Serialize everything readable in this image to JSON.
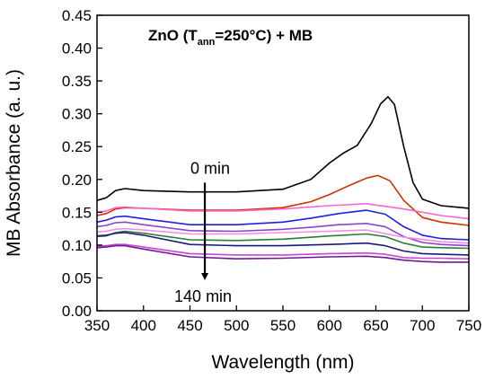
{
  "chart_data": {
    "type": "line",
    "title": {
      "prefix": "ZnO (T",
      "sub": "ann",
      "suffix": "=250°C) + MB"
    },
    "xlabel": "Wavelength (nm)",
    "ylabel": "MB Absorbance (a. u.)",
    "xlim": [
      350,
      750
    ],
    "ylim": [
      0,
      0.45
    ],
    "xticks": [
      "350",
      "400",
      "450",
      "500",
      "550",
      "600",
      "650",
      "700",
      "750"
    ],
    "yticks": [
      "0.00",
      "0.05",
      "0.10",
      "0.15",
      "0.20",
      "0.25",
      "0.30",
      "0.35",
      "0.40",
      "0.45"
    ],
    "grid": false,
    "annotations": {
      "start": "0 min",
      "end": "140 min",
      "arrow_wavelength": 466,
      "arrow_from": 0.195,
      "arrow_to": 0.052
    },
    "series": [
      {
        "color": "#000000",
        "points": [
          [
            350,
            0.168
          ],
          [
            360,
            0.172
          ],
          [
            370,
            0.183
          ],
          [
            380,
            0.186
          ],
          [
            400,
            0.183
          ],
          [
            450,
            0.181
          ],
          [
            500,
            0.181
          ],
          [
            550,
            0.185
          ],
          [
            580,
            0.2
          ],
          [
            600,
            0.225
          ],
          [
            615,
            0.24
          ],
          [
            630,
            0.252
          ],
          [
            645,
            0.285
          ],
          [
            655,
            0.315
          ],
          [
            663,
            0.326
          ],
          [
            670,
            0.314
          ],
          [
            680,
            0.25
          ],
          [
            690,
            0.195
          ],
          [
            700,
            0.17
          ],
          [
            720,
            0.16
          ],
          [
            750,
            0.156
          ]
        ]
      },
      {
        "color": "#cc3300",
        "points": [
          [
            350,
            0.145
          ],
          [
            360,
            0.148
          ],
          [
            370,
            0.155
          ],
          [
            380,
            0.157
          ],
          [
            400,
            0.156
          ],
          [
            450,
            0.153
          ],
          [
            500,
            0.153
          ],
          [
            550,
            0.157
          ],
          [
            580,
            0.166
          ],
          [
            600,
            0.177
          ],
          [
            620,
            0.19
          ],
          [
            640,
            0.202
          ],
          [
            652,
            0.206
          ],
          [
            665,
            0.198
          ],
          [
            680,
            0.168
          ],
          [
            700,
            0.142
          ],
          [
            720,
            0.135
          ],
          [
            750,
            0.13
          ]
        ]
      },
      {
        "color": "#ff66cc",
        "points": [
          [
            350,
            0.15
          ],
          [
            360,
            0.152
          ],
          [
            370,
            0.157
          ],
          [
            380,
            0.158
          ],
          [
            400,
            0.156
          ],
          [
            450,
            0.152
          ],
          [
            500,
            0.152
          ],
          [
            550,
            0.155
          ],
          [
            600,
            0.16
          ],
          [
            640,
            0.163
          ],
          [
            680,
            0.155
          ],
          [
            720,
            0.145
          ],
          [
            750,
            0.14
          ]
        ]
      },
      {
        "color": "#1f1fe0",
        "points": [
          [
            350,
            0.135
          ],
          [
            360,
            0.138
          ],
          [
            370,
            0.143
          ],
          [
            380,
            0.144
          ],
          [
            400,
            0.14
          ],
          [
            450,
            0.131
          ],
          [
            500,
            0.131
          ],
          [
            550,
            0.135
          ],
          [
            580,
            0.141
          ],
          [
            610,
            0.148
          ],
          [
            640,
            0.153
          ],
          [
            660,
            0.147
          ],
          [
            680,
            0.128
          ],
          [
            700,
            0.115
          ],
          [
            720,
            0.11
          ],
          [
            750,
            0.108
          ]
        ]
      },
      {
        "color": "#8e44c8",
        "points": [
          [
            350,
            0.128
          ],
          [
            360,
            0.13
          ],
          [
            370,
            0.134
          ],
          [
            380,
            0.135
          ],
          [
            400,
            0.131
          ],
          [
            450,
            0.122
          ],
          [
            500,
            0.121
          ],
          [
            550,
            0.124
          ],
          [
            580,
            0.127
          ],
          [
            610,
            0.131
          ],
          [
            640,
            0.133
          ],
          [
            660,
            0.128
          ],
          [
            680,
            0.113
          ],
          [
            700,
            0.104
          ],
          [
            720,
            0.101
          ],
          [
            750,
            0.099
          ]
        ]
      },
      {
        "color": "#ff88ee",
        "points": [
          [
            350,
            0.12
          ],
          [
            360,
            0.121
          ],
          [
            370,
            0.124
          ],
          [
            380,
            0.125
          ],
          [
            400,
            0.123
          ],
          [
            450,
            0.117
          ],
          [
            500,
            0.117
          ],
          [
            550,
            0.119
          ],
          [
            600,
            0.121
          ],
          [
            640,
            0.123
          ],
          [
            680,
            0.112
          ],
          [
            720,
            0.105
          ],
          [
            750,
            0.103
          ]
        ]
      },
      {
        "color": "#2e7d32",
        "points": [
          [
            350,
            0.113
          ],
          [
            360,
            0.114
          ],
          [
            370,
            0.119
          ],
          [
            380,
            0.121
          ],
          [
            400,
            0.118
          ],
          [
            450,
            0.108
          ],
          [
            500,
            0.107
          ],
          [
            550,
            0.109
          ],
          [
            600,
            0.114
          ],
          [
            640,
            0.117
          ],
          [
            660,
            0.113
          ],
          [
            680,
            0.103
          ],
          [
            700,
            0.097
          ],
          [
            720,
            0.096
          ],
          [
            750,
            0.095
          ]
        ]
      },
      {
        "color": "#1a1a7a",
        "points": [
          [
            350,
            0.114
          ],
          [
            360,
            0.115
          ],
          [
            370,
            0.118
          ],
          [
            380,
            0.119
          ],
          [
            400,
            0.115
          ],
          [
            450,
            0.101
          ],
          [
            500,
            0.099
          ],
          [
            550,
            0.099
          ],
          [
            600,
            0.101
          ],
          [
            640,
            0.103
          ],
          [
            660,
            0.099
          ],
          [
            680,
            0.091
          ],
          [
            700,
            0.087
          ],
          [
            720,
            0.086
          ],
          [
            750,
            0.085
          ]
        ]
      },
      {
        "color": "#cc44cc",
        "points": [
          [
            350,
            0.098
          ],
          [
            360,
            0.099
          ],
          [
            370,
            0.101
          ],
          [
            380,
            0.101
          ],
          [
            400,
            0.097
          ],
          [
            450,
            0.087
          ],
          [
            500,
            0.085
          ],
          [
            550,
            0.085
          ],
          [
            600,
            0.087
          ],
          [
            640,
            0.088
          ],
          [
            660,
            0.086
          ],
          [
            680,
            0.081
          ],
          [
            700,
            0.08
          ],
          [
            720,
            0.08
          ],
          [
            750,
            0.079
          ]
        ]
      },
      {
        "color": "#6a1b9a",
        "points": [
          [
            350,
            0.096
          ],
          [
            360,
            0.097
          ],
          [
            370,
            0.099
          ],
          [
            380,
            0.099
          ],
          [
            400,
            0.094
          ],
          [
            450,
            0.082
          ],
          [
            500,
            0.079
          ],
          [
            550,
            0.08
          ],
          [
            600,
            0.082
          ],
          [
            640,
            0.083
          ],
          [
            660,
            0.081
          ],
          [
            680,
            0.077
          ],
          [
            700,
            0.075
          ],
          [
            720,
            0.074
          ],
          [
            750,
            0.074
          ]
        ]
      }
    ]
  }
}
